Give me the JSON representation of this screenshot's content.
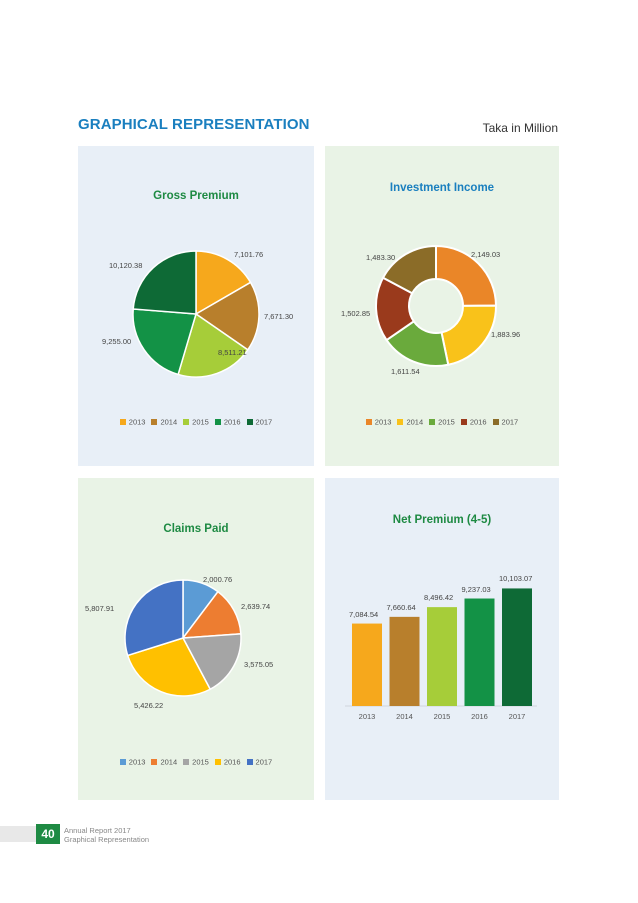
{
  "header": {
    "title": "GRAPHICAL REPRESENTATION",
    "unit": "Taka in Million"
  },
  "colors": {
    "panel_blue": "#e8eff7",
    "panel_green": "#e9f3e6",
    "title_blue": "#1a7fbf",
    "title_green": "#1e8a43"
  },
  "chart_data": [
    {
      "type": "pie",
      "title": "Gross Premium",
      "categories": [
        "2013",
        "2014",
        "2015",
        "2016",
        "2017"
      ],
      "values": [
        7101.76,
        7671.3,
        8511.21,
        9255.0,
        10120.38
      ],
      "labels": [
        "7,101.76",
        "7,671.30",
        "8,511.21",
        "9,255.00",
        "10,120.38"
      ],
      "colors": [
        "#f6a81c",
        "#b87f2c",
        "#a6cd39",
        "#139246",
        "#0e6a36"
      ],
      "legend": "bottom"
    },
    {
      "type": "pie",
      "style": "donut",
      "title": "Investment Income",
      "categories": [
        "2013",
        "2014",
        "2015",
        "2016",
        "2017"
      ],
      "values": [
        2149.03,
        1883.96,
        1611.54,
        1502.85,
        1483.3
      ],
      "labels": [
        "2,149.03",
        "1,883.96",
        "1,611.54",
        "1,502.85",
        "1,483.30"
      ],
      "colors": [
        "#ea8628",
        "#f9c21a",
        "#6aaa3c",
        "#9a3a1c",
        "#8b6c28"
      ],
      "legend": "bottom"
    },
    {
      "type": "pie",
      "title": "Claims Paid",
      "categories": [
        "2013",
        "2014",
        "2015",
        "2016",
        "2017"
      ],
      "values": [
        2000.76,
        2639.74,
        3575.05,
        5426.22,
        5807.91
      ],
      "labels": [
        "2,000.76",
        "2,639.74",
        "3,575.05",
        "5,426.22",
        "5,807.91"
      ],
      "colors": [
        "#5b9bd5",
        "#ed7d31",
        "#a5a5a5",
        "#ffc000",
        "#4472c4"
      ],
      "legend": "bottom"
    },
    {
      "type": "bar",
      "title": "Net Premium (4-5)",
      "categories": [
        "2013",
        "2014",
        "2015",
        "2016",
        "2017"
      ],
      "values": [
        7084.54,
        7660.64,
        8496.42,
        9237.03,
        10103.07
      ],
      "labels": [
        "7,084.54",
        "7,660.64",
        "8,496.42",
        "9,237.03",
        "10,103.07"
      ],
      "colors": [
        "#f6a81c",
        "#b87f2c",
        "#a6cd39",
        "#139246",
        "#0e6a36"
      ],
      "ylim": [
        0,
        11000
      ],
      "grid": false
    }
  ],
  "footer": {
    "page": "40",
    "line1": "Annual Report 2017",
    "line2": "Graphical Representation"
  }
}
